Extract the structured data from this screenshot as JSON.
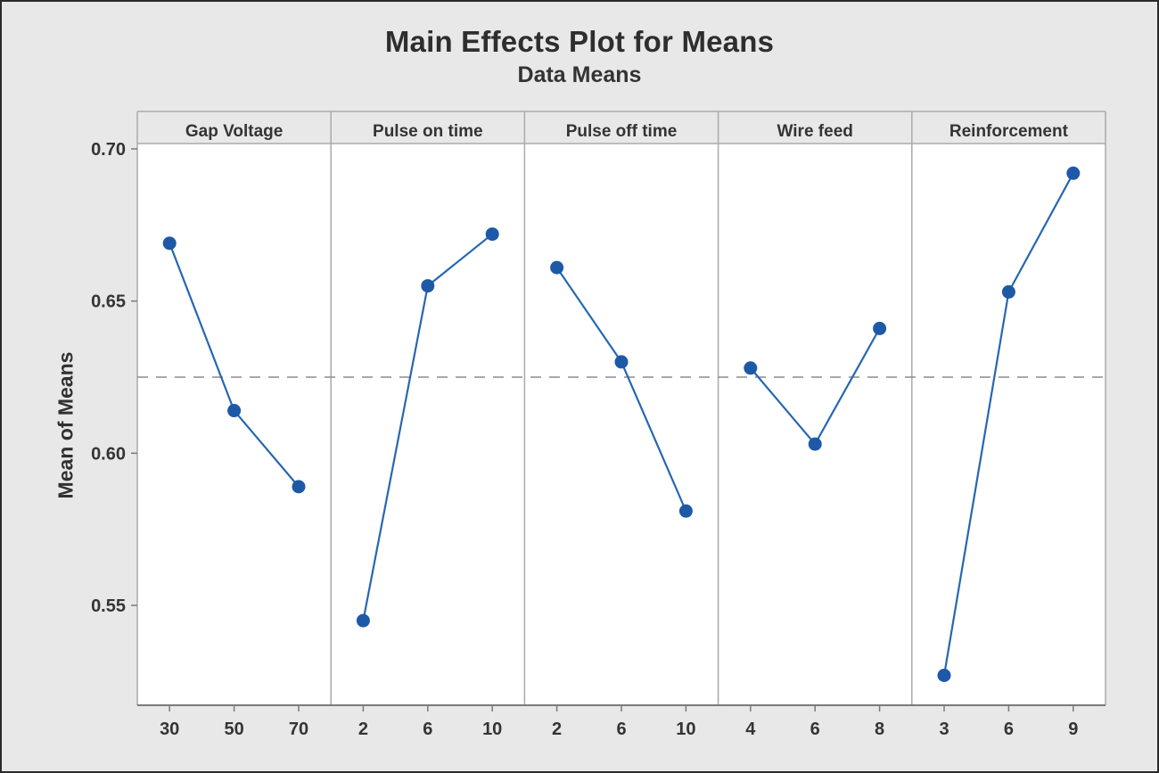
{
  "title": "Main Effects Plot for Means",
  "subtitle": "Data Means",
  "y_axis_title": "Mean of Means",
  "colors": {
    "background": "#e8e8e8",
    "plot_background": "#ffffff",
    "panel_border": "#aaaaaa",
    "axis_line": "#7a7a7a",
    "tick_color": "#7a7a7a",
    "reference_line": "#8c8c8c",
    "series_line": "#2767b1",
    "marker_fill": "#1d59a7",
    "text": "#343434"
  },
  "chart_data": {
    "type": "line",
    "title": "Main Effects Plot for Means",
    "subtitle": "Data Means",
    "xlabel": "",
    "ylabel": "Mean of Means",
    "grid": false,
    "legend": null,
    "ylim": [
      0.517,
      0.702
    ],
    "yticks": [
      0.7,
      0.65,
      0.6,
      0.55
    ],
    "ytick_labels": [
      "0.70",
      "0.65",
      "0.60",
      "0.55"
    ],
    "reference_line_value": 0.625,
    "reference_line_style": "dashed",
    "marker": "circle",
    "panels": [
      {
        "label": "Gap Voltage",
        "x": [
          30,
          50,
          70
        ],
        "x_labels": [
          "30",
          "50",
          "70"
        ],
        "values": [
          0.669,
          0.614,
          0.589
        ]
      },
      {
        "label": "Pulse on time",
        "x": [
          2,
          6,
          10
        ],
        "x_labels": [
          "2",
          "6",
          "10"
        ],
        "values": [
          0.545,
          0.655,
          0.672
        ]
      },
      {
        "label": "Pulse off time",
        "x": [
          2,
          6,
          10
        ],
        "x_labels": [
          "2",
          "6",
          "10"
        ],
        "values": [
          0.661,
          0.63,
          0.581
        ]
      },
      {
        "label": "Wire feed",
        "x": [
          4,
          6,
          8
        ],
        "x_labels": [
          "4",
          "6",
          "8"
        ],
        "values": [
          0.628,
          0.603,
          0.641
        ]
      },
      {
        "label": "Reinforcement",
        "x": [
          3,
          6,
          9
        ],
        "x_labels": [
          "3",
          "6",
          "9"
        ],
        "values": [
          0.527,
          0.653,
          0.692
        ]
      }
    ]
  }
}
